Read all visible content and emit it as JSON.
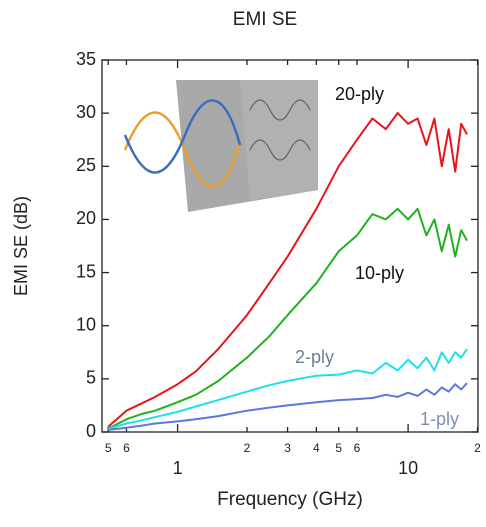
{
  "chart_data": {
    "type": "line",
    "title": "EMI SE",
    "x_label": "Frequency (GHz)",
    "y_label": "EMI SE (dB)",
    "x_scale": "log",
    "x": [
      0.5,
      0.6,
      0.7,
      0.8,
      1,
      1.2,
      1.5,
      2,
      2.5,
      3,
      4,
      5,
      6,
      7,
      8,
      9,
      10,
      11,
      12,
      13,
      14,
      15,
      16,
      17,
      18
    ],
    "series": [
      {
        "name": "20-ply",
        "color": "#e8141b",
        "values": [
          0.5,
          2,
          2.7,
          3.3,
          4.5,
          5.7,
          7.8,
          11,
          14,
          16.5,
          21,
          25,
          27.5,
          29.5,
          28.5,
          30,
          29,
          29.5,
          27,
          29.5,
          25,
          28.5,
          24.5,
          29,
          28
        ]
      },
      {
        "name": "10-ply",
        "color": "#1fb21f",
        "values": [
          0.3,
          1.2,
          1.7,
          2,
          2.8,
          3.5,
          4.8,
          7,
          9,
          11,
          14,
          17,
          18.5,
          20.5,
          20,
          21,
          20,
          21,
          18.5,
          20,
          17,
          19.5,
          16.5,
          19,
          18
        ]
      },
      {
        "name": "2-ply",
        "color": "#1ee0e8",
        "values": [
          0.3,
          0.8,
          1.1,
          1.4,
          1.9,
          2.4,
          3,
          3.8,
          4.4,
          4.8,
          5.3,
          5.4,
          5.8,
          5.5,
          6.5,
          5.8,
          6.8,
          6,
          7,
          5.8,
          7.5,
          6.5,
          7.5,
          7,
          7.8
        ]
      },
      {
        "name": "1-ply",
        "color": "#5a78e0",
        "values": [
          0.2,
          0.4,
          0.6,
          0.8,
          1,
          1.2,
          1.5,
          2,
          2.3,
          2.5,
          2.8,
          3,
          3.1,
          3.2,
          3.5,
          3.3,
          3.7,
          3.4,
          4,
          3.5,
          4.2,
          3.8,
          4.5,
          4,
          4.6
        ]
      }
    ],
    "xlim": [
      0.47,
      20.1
    ],
    "ylim": [
      0,
      35
    ],
    "xticks": [
      {
        "value": 0.5,
        "label": "5"
      },
      {
        "value": 0.6,
        "label": "6"
      },
      1,
      {
        "value": 2,
        "label": "2"
      },
      {
        "value": 3,
        "label": "3"
      },
      {
        "value": 4,
        "label": "4"
      },
      {
        "value": 5,
        "label": "5"
      },
      {
        "value": 6,
        "label": "6"
      },
      10,
      {
        "value": 20,
        "label": "2"
      }
    ],
    "yticks": [
      0,
      5,
      10,
      15,
      20,
      25,
      30,
      35
    ]
  }
}
